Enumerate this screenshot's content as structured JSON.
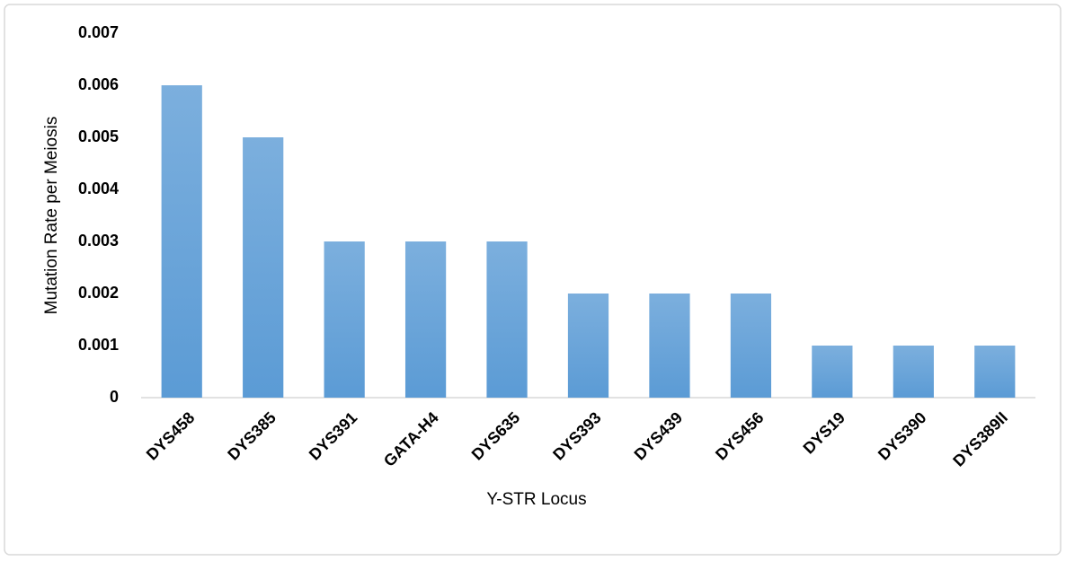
{
  "chart_data": {
    "type": "bar",
    "x_label": "Y-STR Locus",
    "y_label": "Mutation Rate per Meiosis",
    "categories": [
      "DYS458",
      "DYS385",
      "DYS391",
      "GATA-H4",
      "DYS635",
      "DYS393",
      "DYS439",
      "DYS456",
      "DYS19",
      "DYS390",
      "DYS389II"
    ],
    "values": [
      0.006,
      0.005,
      0.003,
      0.003,
      0.003,
      0.002,
      0.002,
      0.002,
      0.001,
      0.001,
      0.001
    ],
    "color": "#5b9bd5",
    "ylim": [
      0,
      0.007
    ],
    "yticks": [
      0,
      0.001,
      0.002,
      0.003,
      0.004,
      0.005,
      0.006,
      0.007
    ],
    "grid": false
  }
}
